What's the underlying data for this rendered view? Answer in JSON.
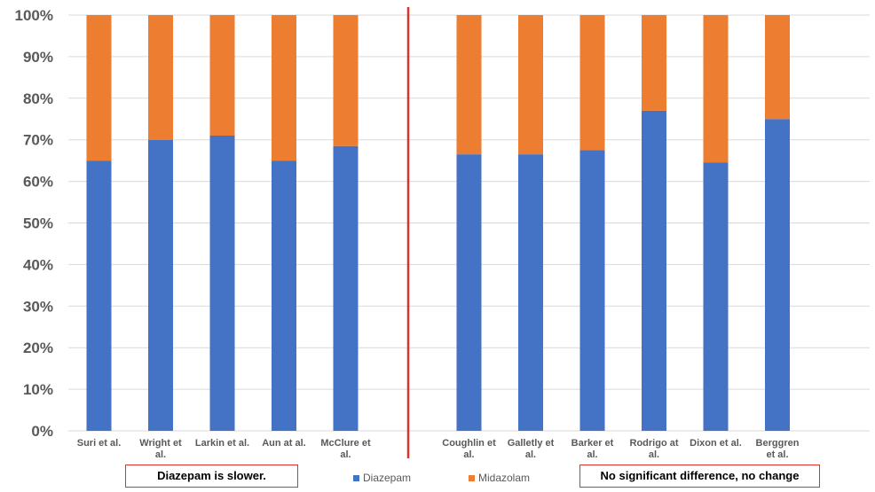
{
  "chart_data": {
    "type": "bar",
    "stacked": true,
    "percent": true,
    "categories": [
      "Suri et al.",
      "Wright et al.",
      "Larkin et al.",
      "Aun at al.",
      "McClure et al.",
      "",
      "Coughlin et al.",
      "Galletly et al.",
      "Barker et al.",
      "Rodrigo at al.",
      "Dixon et al.",
      "Berggren et al."
    ],
    "category_lines": [
      [
        "Suri et al."
      ],
      [
        "Wright et",
        "al."
      ],
      [
        "Larkin et al."
      ],
      [
        "Aun at al."
      ],
      [
        "McClure et",
        "al."
      ],
      [],
      [
        "Coughlin et",
        "al."
      ],
      [
        "Galletly et",
        "al."
      ],
      [
        "Barker et",
        "al."
      ],
      [
        "Rodrigo at",
        "al."
      ],
      [
        "Dixon et al."
      ],
      [
        "Berggren",
        "et al."
      ]
    ],
    "series": [
      {
        "name": "Diazepam",
        "color": "#4472c4",
        "values": [
          65,
          70,
          71,
          65,
          68.5,
          null,
          66.5,
          66.5,
          67.5,
          77,
          64.5,
          75
        ]
      },
      {
        "name": "Midazolam",
        "color": "#ed7d31",
        "values": [
          35,
          30,
          29,
          35,
          31.5,
          null,
          33.5,
          33.5,
          32.5,
          23,
          35.5,
          25
        ]
      }
    ],
    "y_ticks": [
      "0%",
      "10%",
      "20%",
      "30%",
      "40%",
      "50%",
      "60%",
      "70%",
      "80%",
      "90%",
      "100%"
    ],
    "ylim": [
      0,
      100
    ],
    "grid": true,
    "divider_color": "#e0302a",
    "legend": [
      "Diazepam",
      "Midazolam"
    ],
    "annotations": {
      "left": "Diazepam is slower.",
      "right": "No significant difference, no change"
    }
  }
}
